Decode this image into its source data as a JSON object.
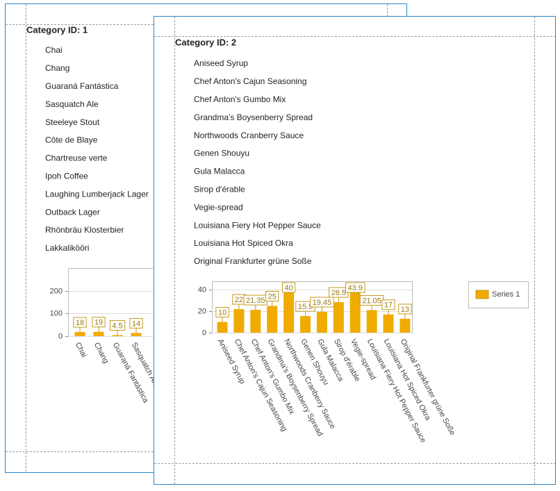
{
  "pages": [
    {
      "title": "Category ID: 1",
      "products": [
        "Chai",
        "Chang",
        "Guaraná Fantástica",
        "Sasquatch Ale",
        "Steeleye Stout",
        "Côte de Blaye",
        "Chartreuse verte",
        "Ipoh Coffee",
        "Laughing Lumberjack Lager",
        "Outback Lager",
        "Rhönbräu Klosterbier",
        "Lakkalikööri"
      ],
      "chart": {
        "type": "bar",
        "categories": [
          "Chai",
          "Chang",
          "Guaraná Fantástica",
          "Sasquatch Ale"
        ],
        "values": [
          18,
          19,
          4.5,
          14
        ],
        "color": "#f0ab00",
        "ylim": [
          0,
          300
        ],
        "yticks": [
          0,
          100,
          200
        ]
      }
    },
    {
      "title": "Category ID: 2",
      "products": [
        "Aniseed Syrup",
        "Chef Anton's Cajun Seasoning",
        "Chef Anton's Gumbo Mix",
        "Grandma's Boysenberry Spread",
        "Northwoods Cranberry Sauce",
        "Genen Shouyu",
        "Gula Malacca",
        "Sirop d'érable",
        "Vegie-spread",
        "Louisiana Fiery Hot Pepper Sauce",
        "Louisiana Hot Spiced Okra",
        "Original Frankfurter grüne Soße"
      ],
      "chart": {
        "type": "bar",
        "categories": [
          "Aniseed Syrup",
          "Chef Anton's Cajun Seasoning",
          "Chef Anton's Gumbo Mix",
          "Grandma's Boysenberry Spread",
          "Northwoods Cranberry Sauce",
          "Genen Shouyu",
          "Gula Malacca",
          "Sirop d'érable",
          "Vegie-spread",
          "Louisiana Fiery Hot Pepper Sauce",
          "Louisiana Hot Spiced Okra",
          "Original Frankfurter grüne Soße"
        ],
        "values": [
          10,
          22,
          21.35,
          25,
          40,
          15.5,
          19.45,
          28.5,
          43.9,
          21.05,
          17,
          13
        ],
        "color": "#f0ab00",
        "ylim": [
          0,
          48
        ],
        "yticks": [
          0,
          20,
          40
        ],
        "legend": "Series 1"
      }
    }
  ]
}
